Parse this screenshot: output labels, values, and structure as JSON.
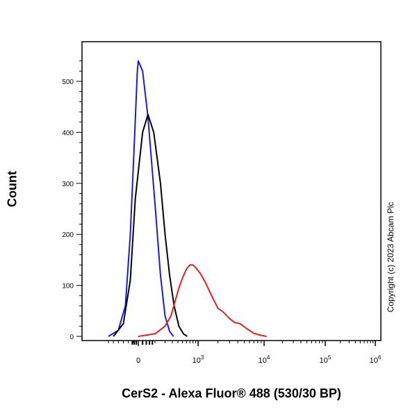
{
  "chart_data": {
    "type": "line",
    "xlabel": "CerS2 - Alexa Fluor® 488 (530/30 BP)",
    "ylabel": "Count",
    "x_scale": "biexponential",
    "x_tick_labels": [
      "0",
      "10^3",
      "10^4",
      "10^5",
      "10^6"
    ],
    "y_ticks": [
      0,
      100,
      200,
      300,
      400,
      500
    ],
    "ylim": [
      0,
      540
    ],
    "grid": false,
    "legend": "none",
    "annotation": "Copyright (c) 2023 Abcam Plc",
    "series": [
      {
        "color": "#1a1ad6",
        "points": [
          [
            -300,
            0
          ],
          [
            -200,
            12
          ],
          [
            -130,
            60
          ],
          [
            -80,
            200
          ],
          [
            -40,
            380
          ],
          [
            -10,
            520
          ],
          [
            0,
            540
          ],
          [
            20,
            520
          ],
          [
            50,
            430
          ],
          [
            100,
            260
          ],
          [
            150,
            120
          ],
          [
            200,
            40
          ],
          [
            260,
            10
          ],
          [
            320,
            0
          ]
        ]
      },
      {
        "color": "#000000",
        "points": [
          [
            -250,
            0
          ],
          [
            -150,
            25
          ],
          [
            -80,
            110
          ],
          [
            -30,
            270
          ],
          [
            20,
            400
          ],
          [
            50,
            435
          ],
          [
            90,
            400
          ],
          [
            150,
            300
          ],
          [
            200,
            200
          ],
          [
            260,
            120
          ],
          [
            330,
            60
          ],
          [
            420,
            20
          ],
          [
            520,
            5
          ],
          [
            620,
            0
          ]
        ]
      },
      {
        "color": "#e02020",
        "points": [
          [
            0,
            0
          ],
          [
            100,
            5
          ],
          [
            200,
            20
          ],
          [
            280,
            40
          ],
          [
            350,
            70
          ],
          [
            420,
            95
          ],
          [
            500,
            115
          ],
          [
            600,
            132
          ],
          [
            700,
            140
          ],
          [
            800,
            140
          ],
          [
            900,
            135
          ],
          [
            1100,
            122
          ],
          [
            1300,
            105
          ],
          [
            1600,
            80
          ],
          [
            2000,
            55
          ],
          [
            2400,
            48
          ],
          [
            3000,
            35
          ],
          [
            3600,
            27
          ],
          [
            4300,
            25
          ],
          [
            5500,
            15
          ],
          [
            7000,
            6
          ],
          [
            9000,
            2
          ],
          [
            11000,
            0
          ]
        ]
      }
    ]
  }
}
